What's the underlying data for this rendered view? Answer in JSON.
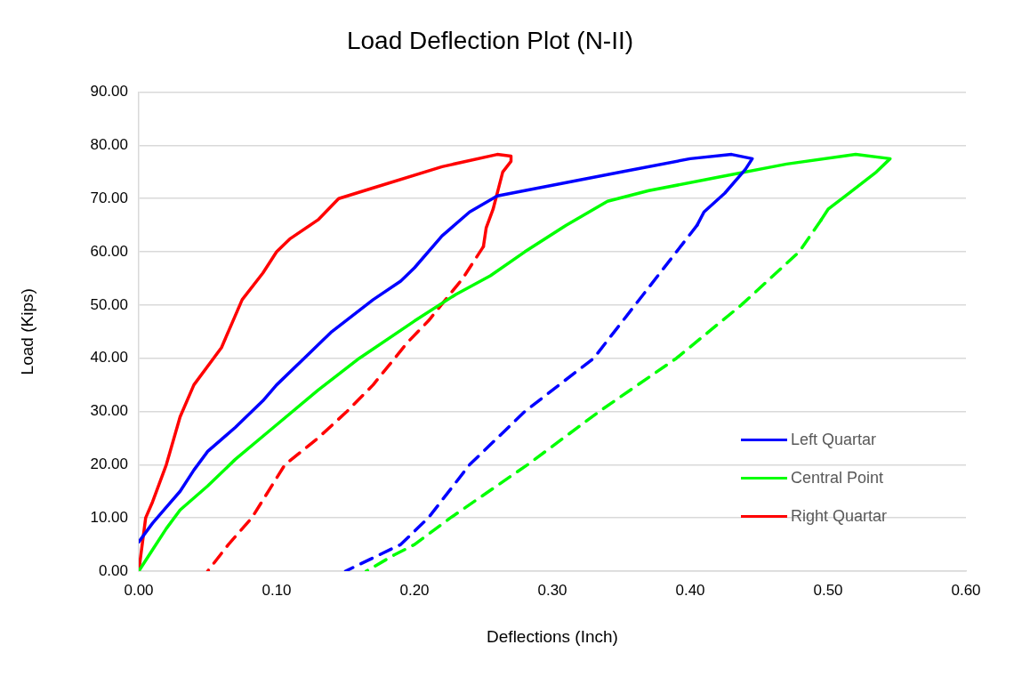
{
  "chart_data": {
    "type": "line",
    "title": "Load Deflection Plot (N-II)",
    "xlabel": "Deflections (Inch)",
    "ylabel": "Load (Kips)",
    "xlim": [
      0,
      0.6
    ],
    "xticks": [
      {
        "value": 0,
        "label": "0.00"
      },
      {
        "value": 0.1,
        "label": "0.10"
      },
      {
        "value": 0.2,
        "label": "0.20"
      },
      {
        "value": 0.3,
        "label": "0.30"
      },
      {
        "value": 0.4,
        "label": "0.40"
      },
      {
        "value": 0.5,
        "label": "0.50"
      },
      {
        "value": 0.6,
        "label": "0.60"
      }
    ],
    "ylim": [
      0,
      90
    ],
    "yticks": [
      {
        "value": 0,
        "label": "0.00"
      },
      {
        "value": 10,
        "label": "10.00"
      },
      {
        "value": 20,
        "label": "20.00"
      },
      {
        "value": 30,
        "label": "30.00"
      },
      {
        "value": 40,
        "label": "40.00"
      },
      {
        "value": 50,
        "label": "50.00"
      },
      {
        "value": 60,
        "label": "60.00"
      },
      {
        "value": 70,
        "label": "70.00"
      },
      {
        "value": 80,
        "label": "80.00"
      },
      {
        "value": 90,
        "label": "90.00"
      }
    ],
    "grid": "y",
    "legend": "bottom right",
    "marker": "none",
    "series": [
      {
        "name": "Left Quartar",
        "color": "#0000ff",
        "line_style": "solid",
        "x": [
          0,
          0.01,
          0.02,
          0.03,
          0.04,
          0.05,
          0.07,
          0.09,
          0.1,
          0.12,
          0.14,
          0.17,
          0.19,
          0.2,
          0.22,
          0.24,
          0.26,
          0.3,
          0.35,
          0.4,
          0.43,
          0.445,
          0.44,
          0.425,
          0.41,
          0.405
        ],
        "values": [
          5.5,
          9,
          12,
          15,
          19,
          22.5,
          27,
          32,
          35,
          40,
          45,
          51,
          54.5,
          57,
          63,
          67.5,
          70.5,
          72.5,
          75,
          77.5,
          78.3,
          77.5,
          75.5,
          71,
          67.5,
          65
        ]
      },
      {
        "name": "Central Point",
        "color": "#00ff00",
        "line_style": "solid",
        "x": [
          0,
          0.01,
          0.02,
          0.03,
          0.05,
          0.07,
          0.1,
          0.13,
          0.16,
          0.2,
          0.23,
          0.255,
          0.28,
          0.31,
          0.34,
          0.37,
          0.42,
          0.47,
          0.52,
          0.545,
          0.535,
          0.515,
          0.5,
          0.495
        ],
        "values": [
          0,
          4,
          8,
          11.5,
          16,
          21,
          27.5,
          34,
          40,
          47,
          52,
          55.5,
          60,
          65,
          69.5,
          71.5,
          74,
          76.5,
          78.3,
          77.5,
          75,
          71,
          68,
          66
        ]
      },
      {
        "name": "Right Quartar",
        "color": "#ff0000",
        "line_style": "solid",
        "x": [
          0,
          0.005,
          0.01,
          0.02,
          0.03,
          0.04,
          0.06,
          0.075,
          0.09,
          0.1,
          0.11,
          0.13,
          0.145,
          0.17,
          0.22,
          0.26,
          0.27,
          0.27,
          0.264,
          0.257,
          0.252,
          0.25
        ],
        "values": [
          0,
          10,
          13,
          20,
          29,
          35,
          42,
          51,
          56,
          60,
          62.5,
          66,
          70,
          72,
          76,
          78.3,
          78,
          77,
          75,
          68,
          64.5,
          61
        ]
      },
      {
        "color": "#0000ff",
        "line_style": "dashed",
        "x": [
          0.405,
          0.39,
          0.36,
          0.33,
          0.28,
          0.24,
          0.21,
          0.19,
          0.15
        ],
        "values": [
          65,
          60,
          50,
          40,
          30,
          20,
          10,
          5,
          0
        ]
      },
      {
        "color": "#00ff00",
        "line_style": "dashed",
        "x": [
          0.495,
          0.479,
          0.437,
          0.39,
          0.334,
          0.282,
          0.226,
          0.2,
          0.185,
          0.165
        ],
        "values": [
          66,
          60,
          50,
          40,
          30,
          20,
          10,
          5,
          3,
          0
        ]
      },
      {
        "color": "#ff0000",
        "line_style": "dashed",
        "x": [
          0.25,
          0.235,
          0.21,
          0.195,
          0.17,
          0.151,
          0.13,
          0.106,
          0.082,
          0.065,
          0.05
        ],
        "values": [
          61,
          55,
          47,
          43,
          35,
          30,
          25,
          20,
          10,
          5,
          0
        ]
      }
    ]
  }
}
